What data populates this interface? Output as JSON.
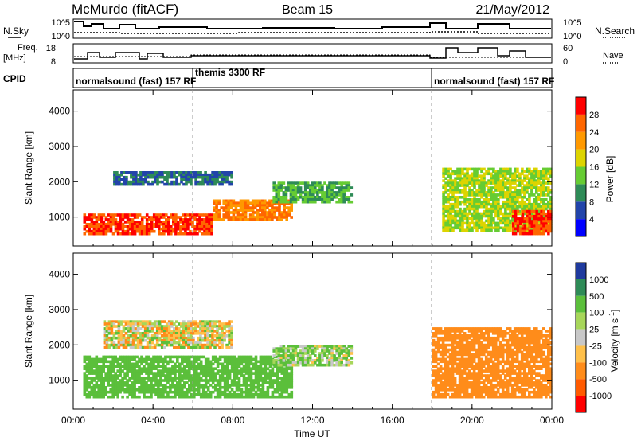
{
  "header": {
    "station": "McMurdo (fitACF)",
    "beam": "Beam 15",
    "date": "21/May/2012"
  },
  "noise_panel": {
    "left_label": "N.Sky",
    "right_label": "N.Search",
    "left_ticks": [
      "10^5",
      "10^0"
    ],
    "right_ticks": [
      "10^5",
      "10^0"
    ]
  },
  "freq_panel": {
    "left_label_line1": "Freq.",
    "left_label_line2": "[MHz]",
    "right_label": "Nave",
    "left_ticks": [
      "18",
      "8"
    ],
    "right_ticks": [
      "60",
      "0"
    ]
  },
  "cpid": {
    "label": "CPID",
    "segments": [
      {
        "text": "normalsound (fast) 157 RF",
        "start_hour": 0
      },
      {
        "text": "themis 3300 RF",
        "start_hour": 6
      },
      {
        "text": "normalsound (fast) 157 RF",
        "start_hour": 18
      }
    ]
  },
  "power_panel": {
    "ylabel": "Slant Range [km]",
    "yticks": [
      "1000",
      "2000",
      "3000",
      "4000"
    ],
    "colorbar_label": "Power [dB]",
    "colorbar_ticks": [
      "4",
      "8",
      "12",
      "16",
      "20",
      "24",
      "28"
    ],
    "colors": [
      "#0000ff",
      "#2244aa",
      "#2e8b57",
      "#66cc33",
      "#ddd400",
      "#ff9900",
      "#ff6600",
      "#ff0000"
    ]
  },
  "velocity_panel": {
    "ylabel": "Slant Range [km]",
    "yticks": [
      "1000",
      "2000",
      "3000",
      "4000"
    ],
    "colorbar_label": "Velocity [m s",
    "colorbar_sup": "-1",
    "colorbar_close": "]",
    "colorbar_ticks": [
      "1000",
      "500",
      "100",
      "25",
      "-25",
      "-100",
      "-500",
      "-1000"
    ],
    "colors": [
      "#1f3a9e",
      "#2e8b57",
      "#5bbf3b",
      "#a7d65a",
      "#c8c8c8",
      "#ffc04a",
      "#ff8c1a",
      "#ff5a00",
      "#ff0000"
    ]
  },
  "xaxis": {
    "label": "Time UT",
    "ticks": [
      "00:00",
      "04:00",
      "08:00",
      "12:00",
      "16:00",
      "20:00",
      "00:00"
    ]
  },
  "chart_data": {
    "type": "heatmap",
    "x_range_hours": [
      0,
      24
    ],
    "y_range_km": [
      180,
      4600
    ],
    "power_regions": [
      {
        "t": [
          0.5,
          7.0
        ],
        "r": [
          500,
          1100
        ],
        "power_db": 28
      },
      {
        "t": [
          7.0,
          11.0
        ],
        "r": [
          900,
          1500
        ],
        "power_db": 24
      },
      {
        "t": [
          10.0,
          14.0
        ],
        "r": [
          1400,
          2000
        ],
        "power_db": 12
      },
      {
        "t": [
          2.0,
          8.0
        ],
        "r": [
          1900,
          2300
        ],
        "power_db": 8
      },
      {
        "t": [
          18.5,
          24.0
        ],
        "r": [
          600,
          2400
        ],
        "power_db": 16
      },
      {
        "t": [
          22.0,
          24.0
        ],
        "r": [
          500,
          1200
        ],
        "power_db": 28
      }
    ],
    "velocity_regions": [
      {
        "t": [
          0.5,
          11.0
        ],
        "r": [
          500,
          1700
        ],
        "velocity_ms": 300
      },
      {
        "t": [
          10.0,
          14.0
        ],
        "r": [
          1400,
          2000
        ],
        "velocity_ms": 100
      },
      {
        "t": [
          1.5,
          8.0
        ],
        "r": [
          1900,
          2700
        ],
        "velocity_ms": 0
      },
      {
        "t": [
          18.0,
          24.0
        ],
        "r": [
          500,
          2500
        ],
        "velocity_ms": -300
      }
    ]
  }
}
